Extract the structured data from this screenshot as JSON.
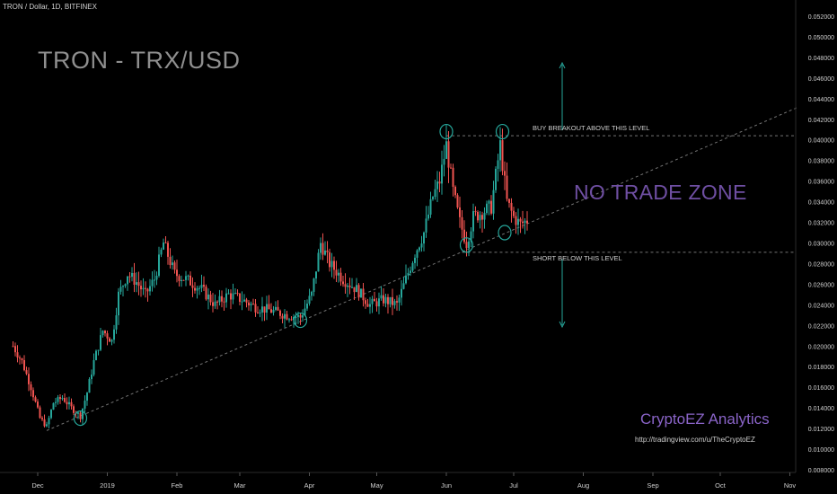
{
  "header": "TRON / Dollar, 1D, BITFINEX",
  "annotations": {
    "title": "TRON - TRX/USD",
    "zone": "NO TRADE ZONE",
    "buy": "BUY BREAKOUT ABOVE THIS LEVEL",
    "short": "SHORT BELOW THIS LEVEL",
    "brand": "CryptoEZ Analytics",
    "url": "http://tradingview.com/u/TheCryptoEZ"
  },
  "colors": {
    "bull": "#26a69a",
    "bear": "#ef5350",
    "trendline": "#9a9a9a",
    "circles": "#26a69a",
    "background": "#000000",
    "axis_text": "#cfcfcf",
    "zone_text": "#6f4fa3",
    "brand_text": "#8a64c8"
  },
  "chart_data": {
    "type": "candlestick",
    "x_ticks": [
      "Dec",
      "2019",
      "Feb",
      "Mar",
      "Apr",
      "May",
      "Jun",
      "Jul",
      "Aug",
      "Sep",
      "Oct",
      "Nov"
    ],
    "y_ticks": [
      "0.052000",
      "0.050000",
      "0.048000",
      "0.046000",
      "0.044000",
      "0.042000",
      "0.040000",
      "0.038000",
      "0.036000",
      "0.034000",
      "0.032000",
      "0.030000",
      "0.028000",
      "0.026000",
      "0.024000",
      "0.022000",
      "0.020000",
      "0.018000",
      "0.016000",
      "0.014000",
      "0.012000",
      "0.010000",
      "0.008000"
    ],
    "ylim": [
      0.0075,
      0.0525
    ],
    "levels": {
      "buy_breakout": 0.0404,
      "short_below": 0.0291
    },
    "trendline": {
      "start": [
        "2018-12-05",
        0.0118
      ],
      "end": [
        "2019-11-05",
        0.0432
      ]
    },
    "circled_points": [
      [
        "2018-12-20",
        0.013
      ],
      [
        "2019-03-28",
        0.0225
      ],
      [
        "2019-06-01",
        0.0408
      ],
      [
        "2019-06-10",
        0.0298
      ],
      [
        "2019-06-26",
        0.0408
      ],
      [
        "2019-06-27",
        0.031
      ]
    ],
    "price_path": [
      [
        "2018-11-20",
        0.02
      ],
      [
        "2018-11-24",
        0.0185
      ],
      [
        "2018-11-28",
        0.016
      ],
      [
        "2018-12-02",
        0.013
      ],
      [
        "2018-12-05",
        0.0122
      ],
      [
        "2018-12-08",
        0.0145
      ],
      [
        "2018-12-12",
        0.015
      ],
      [
        "2018-12-16",
        0.014
      ],
      [
        "2018-12-20",
        0.0132
      ],
      [
        "2018-12-23",
        0.0155
      ],
      [
        "2018-12-26",
        0.0185
      ],
      [
        "2018-12-30",
        0.0215
      ],
      [
        "2019-01-03",
        0.0205
      ],
      [
        "2019-01-06",
        0.025
      ],
      [
        "2019-01-10",
        0.027
      ],
      [
        "2019-01-14",
        0.0262
      ],
      [
        "2019-01-18",
        0.025
      ],
      [
        "2019-01-22",
        0.0265
      ],
      [
        "2019-01-26",
        0.03
      ],
      [
        "2019-01-31",
        0.027
      ],
      [
        "2019-02-05",
        0.0265
      ],
      [
        "2019-02-12",
        0.0255
      ],
      [
        "2019-02-18",
        0.024
      ],
      [
        "2019-02-24",
        0.025
      ],
      [
        "2019-03-02",
        0.0245
      ],
      [
        "2019-03-08",
        0.0238
      ],
      [
        "2019-03-14",
        0.0235
      ],
      [
        "2019-03-22",
        0.023
      ],
      [
        "2019-03-28",
        0.0228
      ],
      [
        "2019-04-02",
        0.025
      ],
      [
        "2019-04-06",
        0.03
      ],
      [
        "2019-04-10",
        0.028
      ],
      [
        "2019-04-16",
        0.0265
      ],
      [
        "2019-04-22",
        0.0255
      ],
      [
        "2019-04-28",
        0.024
      ],
      [
        "2019-05-04",
        0.0245
      ],
      [
        "2019-05-10",
        0.024
      ],
      [
        "2019-05-14",
        0.0265
      ],
      [
        "2019-05-18",
        0.029
      ],
      [
        "2019-05-22",
        0.031
      ],
      [
        "2019-05-26",
        0.0345
      ],
      [
        "2019-05-29",
        0.036
      ],
      [
        "2019-06-01",
        0.0395
      ],
      [
        "2019-06-04",
        0.035
      ],
      [
        "2019-06-07",
        0.032
      ],
      [
        "2019-06-10",
        0.03
      ],
      [
        "2019-06-13",
        0.0325
      ],
      [
        "2019-06-17",
        0.033
      ],
      [
        "2019-06-21",
        0.0335
      ],
      [
        "2019-06-25",
        0.0395
      ],
      [
        "2019-06-28",
        0.034
      ],
      [
        "2019-07-01",
        0.0325
      ],
      [
        "2019-07-04",
        0.0318
      ],
      [
        "2019-07-07",
        0.0322
      ]
    ]
  }
}
